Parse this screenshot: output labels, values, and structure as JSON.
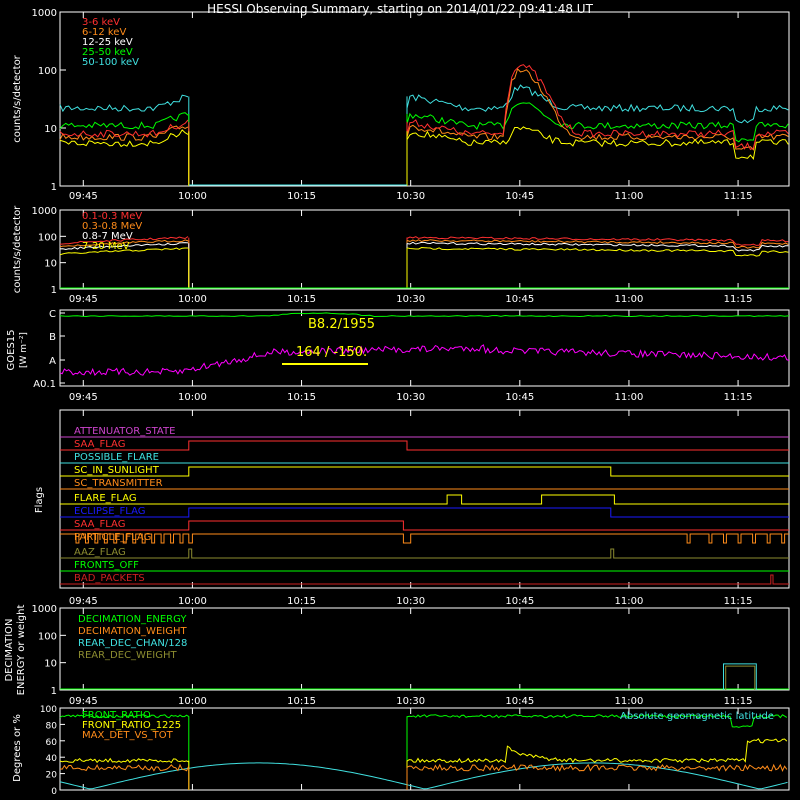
{
  "title": "HESSI Observing Summary, starting on 2014/01/22 09:41:48 UT",
  "colors": {
    "red": "#ff3030",
    "orange": "#ff8c1a",
    "yellow": "#ffff00",
    "green": "#00ff00",
    "cyan": "#40e0e0",
    "magenta": "#ff00ff",
    "blue": "#1a1aff",
    "white": "#ffffff",
    "olive": "#8c8c30",
    "darkred": "#cc2020",
    "purple": "#cc44cc"
  },
  "chart_data": [
    {
      "type": "line",
      "panel": "lightcurve_low",
      "ylabel": "counts/s/detector",
      "yscale": "log",
      "ylim": [
        1,
        1000
      ],
      "y_ticks": [
        "1",
        "10",
        "100",
        "1000"
      ],
      "x_ticks": [
        "09:45",
        "10:00",
        "10:15",
        "10:30",
        "10:45",
        "11:00",
        "11:15"
      ],
      "series": [
        {
          "name": "3-6 keV",
          "color": "red"
        },
        {
          "name": "6-12 keV",
          "color": "orange"
        },
        {
          "name": "12-25 keV",
          "color": "white"
        },
        {
          "name": "25-50 keV",
          "color": "green"
        },
        {
          "name": "50-100 keV",
          "color": "cyan"
        }
      ]
    },
    {
      "type": "line",
      "panel": "lightcurve_high",
      "ylabel": "counts/s/detector",
      "yscale": "log",
      "ylim": [
        1,
        1000
      ],
      "y_ticks": [
        "1",
        "10",
        "100",
        "1000"
      ],
      "x_ticks": [
        "09:45",
        "10:00",
        "10:15",
        "10:30",
        "10:45",
        "11:00",
        "11:15"
      ],
      "series": [
        {
          "name": "0.1-0.3 MeV",
          "color": "red"
        },
        {
          "name": "0.3-0.8 MeV",
          "color": "orange"
        },
        {
          "name": "0.8-7 MeV",
          "color": "white"
        },
        {
          "name": "7-20 MeV",
          "color": "yellow"
        }
      ]
    },
    {
      "type": "line",
      "panel": "goes",
      "ylabel": "GOES15",
      "yunit": "[W m⁻²]",
      "y_ticks": [
        "A0.1",
        "A",
        "B",
        "C"
      ],
      "annotations": [
        "B8.2/1955",
        "164 / -150."
      ],
      "x_ticks": [
        "09:45",
        "10:00",
        "10:15",
        "10:30",
        "10:45",
        "11:00",
        "11:15"
      ]
    },
    {
      "type": "line",
      "panel": "flags",
      "ylabel": "Flags",
      "flags": [
        {
          "name": "ATTENUATOR_STATE",
          "color": "purple"
        },
        {
          "name": "SAA_FLAG",
          "color": "red"
        },
        {
          "name": "POSSIBLE_FLARE",
          "color": "cyan"
        },
        {
          "name": "SC_IN_SUNLIGHT",
          "color": "yellow"
        },
        {
          "name": "SC_TRANSMITTER",
          "color": "orange"
        },
        {
          "name": "FLARE_FLAG",
          "color": "yellow"
        },
        {
          "name": "ECLIPSE_FLAG",
          "color": "blue"
        },
        {
          "name": "SAA_FLAG",
          "color": "red"
        },
        {
          "name": "PARTICLE_FLAG",
          "color": "orange"
        },
        {
          "name": "AAZ_FLAG",
          "color": "olive"
        },
        {
          "name": "FRONTS_OFF",
          "color": "green"
        },
        {
          "name": "BAD_PACKETS",
          "color": "darkred"
        }
      ],
      "x_ticks": [
        "09:45",
        "10:00",
        "10:15",
        "10:30",
        "10:45",
        "11:00",
        "11:15"
      ]
    },
    {
      "type": "line",
      "panel": "decimation",
      "ylabel": "DECIMATION",
      "ylabel2": "ENERGY or weight",
      "yscale": "log",
      "ylim": [
        1,
        1000
      ],
      "y_ticks": [
        "1",
        "10",
        "100",
        "1000"
      ],
      "series": [
        {
          "name": "DECIMATION_ENERGY",
          "color": "green"
        },
        {
          "name": "DECIMATION_WEIGHT",
          "color": "orange"
        },
        {
          "name": "REAR_DEC_CHAN/128",
          "color": "cyan"
        },
        {
          "name": "REAR_DEC_WEIGHT",
          "color": "olive"
        }
      ],
      "x_ticks": [
        "09:45",
        "10:00",
        "10:15",
        "10:30",
        "10:45",
        "11:00",
        "11:15"
      ]
    },
    {
      "type": "line",
      "panel": "ratio",
      "ylabel": "Degrees or %",
      "ylim": [
        0,
        100
      ],
      "y_ticks": [
        "0",
        "20",
        "40",
        "60",
        "80",
        "100"
      ],
      "series": [
        {
          "name": "FRONT_RATIO",
          "color": "green"
        },
        {
          "name": "FRONT_RATIO_1225",
          "color": "yellow"
        },
        {
          "name": "MAX_DET_VS_TOT",
          "color": "orange"
        }
      ],
      "annotations": [
        "Absolute geomagnetic latitude"
      ],
      "x_ticks": [
        "09:45",
        "10:00",
        "10:15",
        "10:30",
        "10:45",
        "11:00",
        "11:15"
      ]
    }
  ]
}
